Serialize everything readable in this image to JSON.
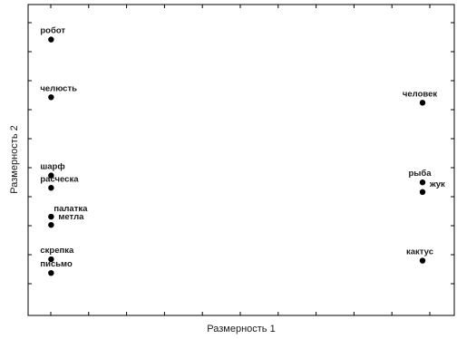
{
  "chart_data": {
    "type": "scatter",
    "title": "",
    "xlabel": "Размерность 1",
    "ylabel": "Размерность 2",
    "xlim": [
      0,
      10
    ],
    "ylim": [
      0,
      10
    ],
    "grid": false,
    "legend": "none",
    "points": [
      {
        "label": "робот",
        "x": 0.2,
        "y": 9.55
      },
      {
        "label": "челюсть",
        "x": 0.2,
        "y": 7.45
      },
      {
        "label": "шарф",
        "x": 0.2,
        "y": 4.6
      },
      {
        "label": "расческа",
        "x": 0.2,
        "y": 4.15
      },
      {
        "label": "палатка",
        "x": 0.2,
        "y": 3.1
      },
      {
        "label": "метла",
        "x": 0.2,
        "y": 2.8
      },
      {
        "label": "скрепка",
        "x": 0.2,
        "y": 1.55
      },
      {
        "label": "письмо",
        "x": 0.2,
        "y": 1.05
      },
      {
        "label": "человек",
        "x": 10.0,
        "y": 7.25
      },
      {
        "label": "рыба",
        "x": 10.0,
        "y": 4.35
      },
      {
        "label": "жук",
        "x": 10.0,
        "y": 4.0
      },
      {
        "label": "кактус",
        "x": 10.0,
        "y": 1.5
      }
    ],
    "marker_color": "#000000"
  }
}
